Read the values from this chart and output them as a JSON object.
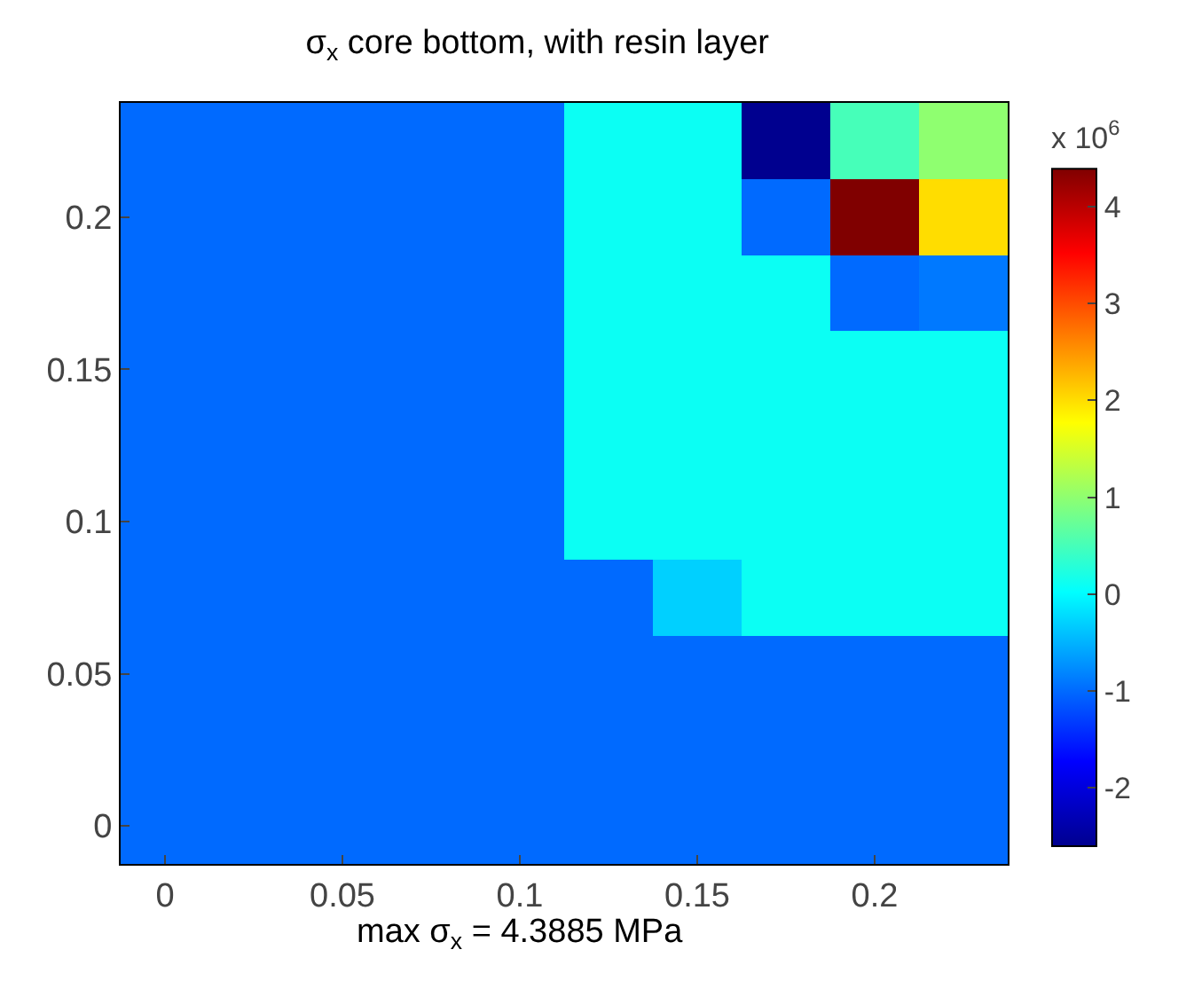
{
  "chart_data": {
    "type": "heatmap",
    "title": "σ$_{x}$ core bottom, with resin layer",
    "categories": [
      "0",
      null,
      "0.05",
      null,
      "0.1",
      null,
      "0.15",
      null,
      "0.2",
      null
    ],
    "y_categories": [
      null,
      "0.2",
      null,
      "0.15",
      null,
      "0.1",
      null,
      "0.05",
      null,
      "0"
    ],
    "cells": [
      [
        -1.0,
        -1.0,
        -1.0,
        -1.0,
        -1.0,
        0.1,
        0.1,
        -2.6,
        0.5,
        1.0
      ],
      [
        -1.0,
        -1.0,
        -1.0,
        -1.0,
        -1.0,
        0.1,
        0.1,
        -1.0,
        4.39,
        2.0
      ],
      [
        -1.0,
        -1.0,
        -1.0,
        -1.0,
        -1.0,
        0.1,
        0.1,
        0.1,
        -1.0,
        -0.9
      ],
      [
        -1.0,
        -1.0,
        -1.0,
        -1.0,
        -1.0,
        0.1,
        0.1,
        0.1,
        0.1,
        0.1
      ],
      [
        -1.0,
        -1.0,
        -1.0,
        -1.0,
        -1.0,
        0.1,
        0.1,
        0.1,
        0.1,
        0.1
      ],
      [
        -1.0,
        -1.0,
        -1.0,
        -1.0,
        -1.0,
        0.1,
        0.1,
        0.1,
        0.1,
        0.1
      ],
      [
        -1.0,
        -1.0,
        -1.0,
        -1.0,
        -1.0,
        -1.0,
        -0.3,
        0.1,
        0.1,
        0.1
      ],
      [
        -1.0,
        -1.0,
        -1.0,
        -1.0,
        -1.0,
        -1.0,
        -1.0,
        -1.0,
        -1.0,
        -1.0
      ],
      [
        -1.0,
        -1.0,
        -1.0,
        -1.0,
        -1.0,
        -1.0,
        -1.0,
        -1.0,
        -1.0,
        -1.0
      ],
      [
        -1.0,
        -1.0,
        -1.0,
        -1.0,
        -1.0,
        -1.0,
        -1.0,
        -1.0,
        -1.0,
        -1.0
      ]
    ],
    "clim": [
      -2.6,
      4.39
    ],
    "cticks": [
      -2,
      -1,
      0,
      1,
      2,
      3,
      4
    ],
    "clabel": "x 10$^{6}$",
    "annotations": [
      "max σ$_{x}$ = 4.3885 MPa"
    ]
  }
}
